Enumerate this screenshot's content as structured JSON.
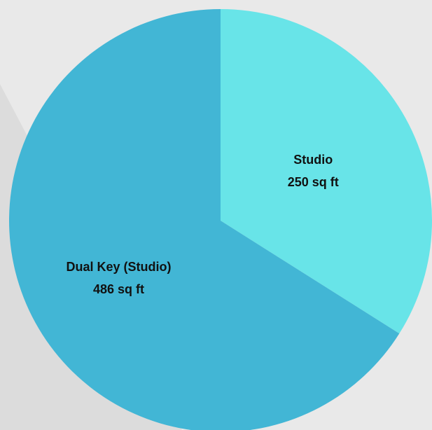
{
  "chart_data": {
    "type": "pie",
    "title": "",
    "slices": [
      {
        "label": "Studio",
        "value": 250,
        "value_label": "250 sq ft",
        "color": "#68e4e8"
      },
      {
        "label": "Dual Key (Studio)",
        "value": 486,
        "value_label": "486 sq ft",
        "color": "#42b6d5"
      }
    ],
    "start_angle": "12 o'clock",
    "direction": "clockwise",
    "legend": "none"
  },
  "background_colors": {
    "page": "#e9e9e9",
    "shadow_band": "#dcdcdc"
  }
}
